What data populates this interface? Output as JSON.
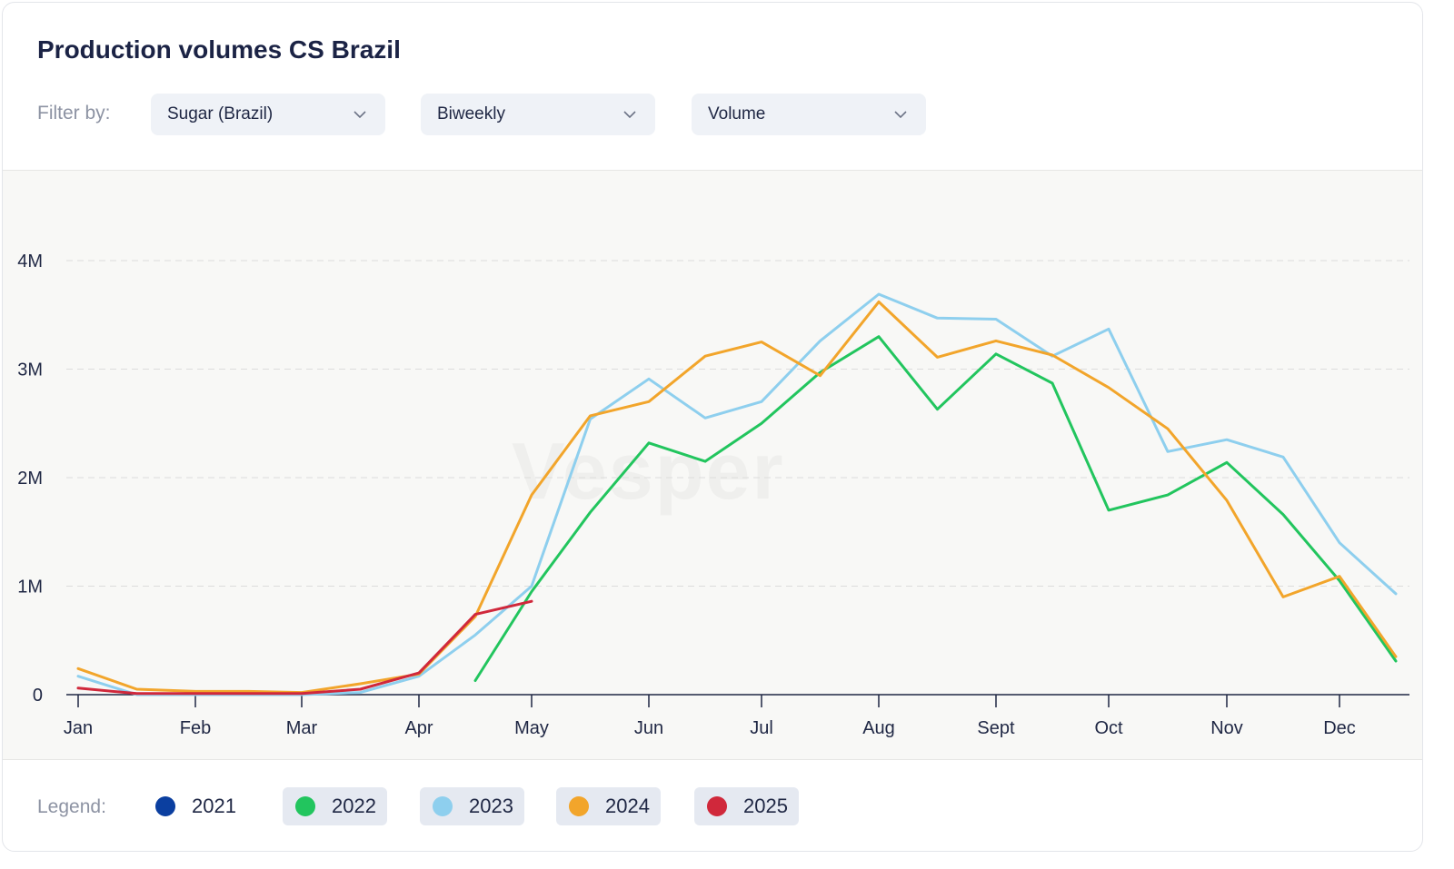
{
  "title": "Production volumes CS Brazil",
  "filter": {
    "label": "Filter by:",
    "product": "Sugar (Brazil)",
    "frequency": "Biweekly",
    "metric": "Volume"
  },
  "watermark": "Vesper",
  "legend": {
    "label": "Legend:",
    "items": [
      {
        "label": "2021",
        "color": "#0b3fa0",
        "active": false
      },
      {
        "label": "2022",
        "color": "#22c55e",
        "active": true
      },
      {
        "label": "2023",
        "color": "#8ecfee",
        "active": true
      },
      {
        "label": "2024",
        "color": "#f2a52b",
        "active": true
      },
      {
        "label": "2025",
        "color": "#d0283b",
        "active": true
      }
    ]
  },
  "chart_data": {
    "type": "line",
    "x_ticks": [
      "Jan",
      "Feb",
      "Mar",
      "Apr",
      "May",
      "Jun",
      "Jul",
      "Aug",
      "Sept",
      "Oct",
      "Nov",
      "Dec"
    ],
    "x_tick_months": [
      0,
      1,
      2,
      3,
      4,
      5,
      6,
      7,
      8,
      9,
      10,
      11
    ],
    "y_ticks": [
      "0",
      "1M",
      "2M",
      "3M",
      "4M"
    ],
    "ylim": [
      0,
      4000000
    ],
    "grid": true,
    "series": [
      {
        "name": "2022",
        "color": "#22c55e",
        "x": [
          3.5,
          4,
          4.5,
          5,
          5.5,
          6,
          6.5,
          7,
          7.5,
          8,
          8.5,
          9,
          9.5,
          10,
          10.5,
          11,
          11.5
        ],
        "values": [
          130000,
          950000,
          1680000,
          2320000,
          2150000,
          2500000,
          2970000,
          3300000,
          2630000,
          3140000,
          2870000,
          1700000,
          1840000,
          2140000,
          1660000,
          1050000,
          310000
        ]
      },
      {
        "name": "2023",
        "color": "#8ecfee",
        "x": [
          0,
          0.5,
          1,
          1.5,
          2,
          2.5,
          3,
          3.5,
          4,
          4.5,
          5,
          5.5,
          6,
          6.5,
          7,
          7.5,
          8,
          8.5,
          9,
          9.5,
          10,
          10.5,
          11,
          11.5
        ],
        "values": [
          170000,
          0,
          0,
          0,
          0,
          20000,
          170000,
          550000,
          1000000,
          2540000,
          2910000,
          2550000,
          2700000,
          3260000,
          3690000,
          3470000,
          3460000,
          3120000,
          3370000,
          2240000,
          2350000,
          2190000,
          1400000,
          930000
        ]
      },
      {
        "name": "2024",
        "color": "#f2a52b",
        "x": [
          0,
          0.5,
          1,
          1.5,
          2,
          2.5,
          3,
          3.5,
          4,
          4.5,
          5,
          5.5,
          6,
          6.5,
          7,
          7.5,
          8,
          8.5,
          9,
          9.5,
          10,
          10.5,
          11,
          11.5
        ],
        "values": [
          240000,
          50000,
          30000,
          30000,
          20000,
          100000,
          190000,
          720000,
          1840000,
          2570000,
          2700000,
          3120000,
          3250000,
          2940000,
          3620000,
          3110000,
          3260000,
          3130000,
          2830000,
          2450000,
          1790000,
          900000,
          1090000,
          350000
        ]
      },
      {
        "name": "2025",
        "color": "#d0283b",
        "x": [
          0,
          0.5,
          1,
          1.5,
          2,
          2.5,
          3,
          3.5,
          4
        ],
        "values": [
          60000,
          10000,
          10000,
          10000,
          10000,
          50000,
          200000,
          740000,
          860000
        ]
      }
    ]
  }
}
